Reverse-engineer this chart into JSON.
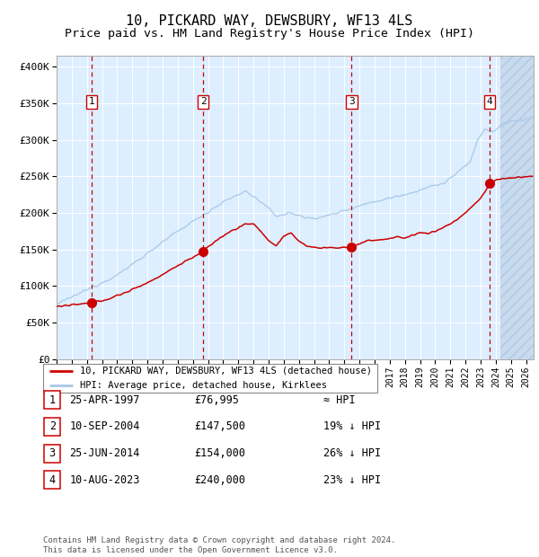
{
  "title": "10, PICKARD WAY, DEWSBURY, WF13 4LS",
  "subtitle": "Price paid vs. HM Land Registry's House Price Index (HPI)",
  "title_fontsize": 11,
  "subtitle_fontsize": 9.5,
  "sale_dates_num": [
    1997.32,
    2004.69,
    2014.48,
    2023.61
  ],
  "sale_prices": [
    76995,
    147500,
    154000,
    240000
  ],
  "sale_labels": [
    "1",
    "2",
    "3",
    "4"
  ],
  "hpi_color": "#a8c8e8",
  "sale_color": "#cc0000",
  "vline_color": "#cc0000",
  "ylabel_ticks": [
    "£0",
    "£50K",
    "£100K",
    "£150K",
    "£200K",
    "£250K",
    "£300K",
    "£350K",
    "£400K"
  ],
  "ytick_values": [
    0,
    50000,
    100000,
    150000,
    200000,
    250000,
    300000,
    350000,
    400000
  ],
  "ylim": [
    0,
    415000
  ],
  "xlim_start": 1995.0,
  "xlim_end": 2026.5,
  "legend_line1": "10, PICKARD WAY, DEWSBURY, WF13 4LS (detached house)",
  "legend_line2": "HPI: Average price, detached house, Kirklees",
  "table_data": [
    [
      "1",
      "25-APR-1997",
      "£76,995",
      "≈ HPI"
    ],
    [
      "2",
      "10-SEP-2004",
      "£147,500",
      "19% ↓ HPI"
    ],
    [
      "3",
      "25-JUN-2014",
      "£154,000",
      "26% ↓ HPI"
    ],
    [
      "4",
      "10-AUG-2023",
      "£240,000",
      "23% ↓ HPI"
    ]
  ],
  "footnote": "Contains HM Land Registry data © Crown copyright and database right 2024.\nThis data is licensed under the Open Government Licence v3.0.",
  "bg_main_color": "#ddeeff",
  "grid_color": "#ffffff"
}
